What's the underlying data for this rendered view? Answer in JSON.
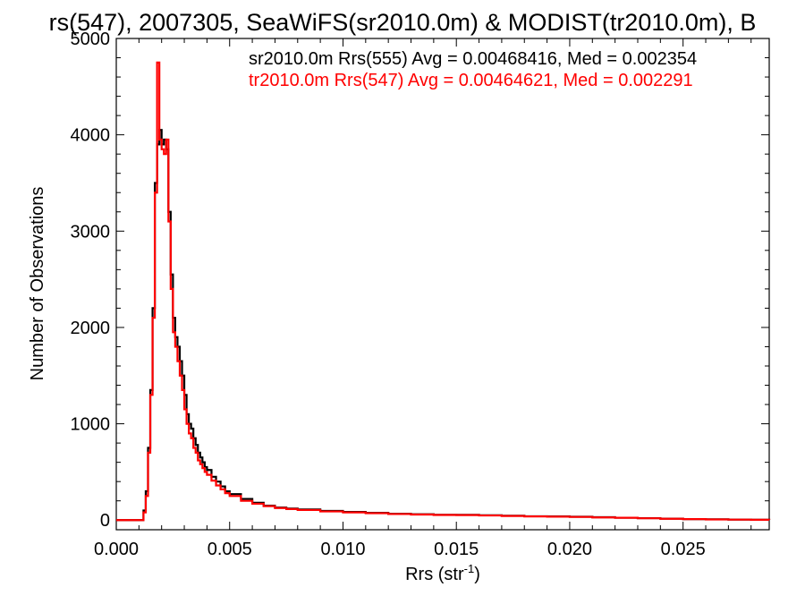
{
  "chart_data": {
    "type": "line",
    "title": "rs(547), 2007305, SeaWiFS(sr2010.0m) & MODIST(tr2010.0m), B",
    "xlabel": "Rrs (str",
    "xlabel_sup": "-1",
    "xlabel_end": ")",
    "ylabel": "Number of Observations",
    "xlim": [
      0.0,
      0.0288
    ],
    "ylim": [
      -100,
      5000
    ],
    "xticks": [
      0.0,
      0.005,
      0.01,
      0.015,
      0.02,
      0.025
    ],
    "xtick_labels": [
      "0.000",
      "0.005",
      "0.010",
      "0.015",
      "0.020",
      "0.025"
    ],
    "yticks": [
      0,
      1000,
      2000,
      3000,
      4000,
      5000
    ],
    "ytick_labels": [
      "0",
      "1000",
      "2000",
      "3000",
      "4000",
      "5000"
    ],
    "annotations": [
      {
        "text": "sr2010.0m Rrs(555) Avg = 0.00468416, Med = 0.002354",
        "color": "#000000"
      },
      {
        "text": "tr2010.0m Rrs(547) Avg = 0.00464621, Med = 0.002291",
        "color": "#ff0000"
      }
    ],
    "series": [
      {
        "color": "#000000",
        "points": [
          [
            0.0,
            0
          ],
          [
            0.0011,
            0
          ],
          [
            0.0012,
            100
          ],
          [
            0.0013,
            300
          ],
          [
            0.0014,
            750
          ],
          [
            0.0015,
            1350
          ],
          [
            0.0016,
            2200
          ],
          [
            0.0017,
            3500
          ],
          [
            0.0018,
            3900
          ],
          [
            0.0019,
            4050
          ],
          [
            0.002,
            3900
          ],
          [
            0.0021,
            3950
          ],
          [
            0.0022,
            3850
          ],
          [
            0.0023,
            3200
          ],
          [
            0.0024,
            2550
          ],
          [
            0.0025,
            2100
          ],
          [
            0.0026,
            1900
          ],
          [
            0.0027,
            1800
          ],
          [
            0.0028,
            1650
          ],
          [
            0.0029,
            1500
          ],
          [
            0.003,
            1300
          ],
          [
            0.0031,
            1100
          ],
          [
            0.0032,
            1000
          ],
          [
            0.0033,
            950
          ],
          [
            0.0034,
            850
          ],
          [
            0.0035,
            780
          ],
          [
            0.0036,
            700
          ],
          [
            0.0037,
            650
          ],
          [
            0.0038,
            600
          ],
          [
            0.0039,
            550
          ],
          [
            0.004,
            520
          ],
          [
            0.0042,
            450
          ],
          [
            0.0044,
            400
          ],
          [
            0.0046,
            350
          ],
          [
            0.0048,
            300
          ],
          [
            0.005,
            270
          ],
          [
            0.0055,
            220
          ],
          [
            0.006,
            180
          ],
          [
            0.0065,
            150
          ],
          [
            0.007,
            130
          ],
          [
            0.0075,
            120
          ],
          [
            0.008,
            110
          ],
          [
            0.009,
            95
          ],
          [
            0.01,
            85
          ],
          [
            0.011,
            75
          ],
          [
            0.012,
            65
          ],
          [
            0.013,
            60
          ],
          [
            0.014,
            55
          ],
          [
            0.015,
            55
          ],
          [
            0.016,
            50
          ],
          [
            0.017,
            45
          ],
          [
            0.018,
            40
          ],
          [
            0.019,
            38
          ],
          [
            0.02,
            35
          ],
          [
            0.021,
            30
          ],
          [
            0.022,
            25
          ],
          [
            0.023,
            20
          ],
          [
            0.024,
            15
          ],
          [
            0.025,
            10
          ],
          [
            0.026,
            8
          ],
          [
            0.027,
            5
          ],
          [
            0.028,
            3
          ],
          [
            0.0288,
            2
          ]
        ]
      },
      {
        "color": "#ff0000",
        "points": [
          [
            0.0,
            0
          ],
          [
            0.0011,
            0
          ],
          [
            0.0012,
            80
          ],
          [
            0.0013,
            250
          ],
          [
            0.0014,
            700
          ],
          [
            0.0015,
            1300
          ],
          [
            0.0016,
            2100
          ],
          [
            0.0017,
            3400
          ],
          [
            0.0018,
            4750
          ],
          [
            0.0019,
            3950
          ],
          [
            0.002,
            3850
          ],
          [
            0.0021,
            3800
          ],
          [
            0.0022,
            3950
          ],
          [
            0.0023,
            3100
          ],
          [
            0.0024,
            2400
          ],
          [
            0.0025,
            1950
          ],
          [
            0.0026,
            1800
          ],
          [
            0.0027,
            1650
          ],
          [
            0.0028,
            1500
          ],
          [
            0.0029,
            1350
          ],
          [
            0.003,
            1150
          ],
          [
            0.0031,
            1000
          ],
          [
            0.0032,
            900
          ],
          [
            0.0033,
            850
          ],
          [
            0.0034,
            750
          ],
          [
            0.0035,
            700
          ],
          [
            0.0036,
            620
          ],
          [
            0.0037,
            580
          ],
          [
            0.0038,
            540
          ],
          [
            0.0039,
            500
          ],
          [
            0.004,
            470
          ],
          [
            0.0042,
            410
          ],
          [
            0.0044,
            360
          ],
          [
            0.0046,
            320
          ],
          [
            0.0048,
            280
          ],
          [
            0.005,
            250
          ],
          [
            0.0055,
            200
          ],
          [
            0.006,
            170
          ],
          [
            0.0065,
            145
          ],
          [
            0.007,
            125
          ],
          [
            0.0075,
            115
          ],
          [
            0.008,
            105
          ],
          [
            0.009,
            90
          ],
          [
            0.01,
            80
          ],
          [
            0.011,
            72
          ],
          [
            0.012,
            63
          ],
          [
            0.013,
            58
          ],
          [
            0.014,
            53
          ],
          [
            0.015,
            52
          ],
          [
            0.016,
            48
          ],
          [
            0.017,
            43
          ],
          [
            0.018,
            38
          ],
          [
            0.019,
            36
          ],
          [
            0.02,
            33
          ],
          [
            0.021,
            28
          ],
          [
            0.022,
            24
          ],
          [
            0.023,
            19
          ],
          [
            0.024,
            14
          ],
          [
            0.025,
            10
          ],
          [
            0.026,
            7
          ],
          [
            0.027,
            5
          ],
          [
            0.028,
            3
          ],
          [
            0.0288,
            2
          ]
        ]
      }
    ]
  }
}
